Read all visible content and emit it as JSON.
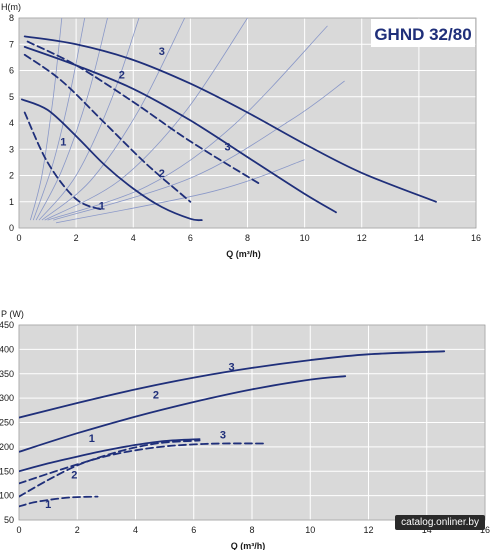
{
  "colors": {
    "plot_bg": "#d9d9d9",
    "grid": "#ffffff",
    "curve": "#1f2f7a",
    "system_curve": "#8a98c8"
  },
  "watermark": "catalog.onliner.by",
  "chart_data": [
    {
      "type": "line",
      "title": "GHND 32/80",
      "ylabel": "H(m)",
      "xlabel_main": "Q",
      "xlabel_unit": "(m³/h)",
      "xlim": [
        0,
        16
      ],
      "ylim": [
        0,
        8
      ],
      "xticks": [
        "0",
        "2",
        "4",
        "6",
        "8",
        "10",
        "12",
        "14",
        "16"
      ],
      "yticks": [
        "0",
        "1",
        "2",
        "3",
        "4",
        "5",
        "6",
        "7",
        "8"
      ],
      "grid": true,
      "series": [
        {
          "label": "3",
          "style": "solid",
          "x": [
            0.2,
            2,
            4,
            6,
            8,
            10,
            12,
            14.6
          ],
          "y": [
            7.3,
            7.0,
            6.4,
            5.5,
            4.4,
            3.2,
            2.1,
            1.0
          ]
        },
        {
          "label": "3",
          "style": "solid",
          "x": [
            0.2,
            2,
            4,
            6,
            8,
            10,
            11.1
          ],
          "y": [
            6.9,
            6.2,
            5.3,
            4.1,
            2.7,
            1.3,
            0.6
          ]
        },
        {
          "label": "3",
          "style": "dashed",
          "x": [
            0.3,
            2,
            4,
            6,
            8.4
          ],
          "y": [
            7.1,
            6.2,
            4.8,
            3.3,
            1.7
          ]
        },
        {
          "label": "2",
          "style": "dashed",
          "x": [
            0.2,
            1.5,
            3,
            4.5,
            6.0
          ],
          "y": [
            6.6,
            5.6,
            4.0,
            2.4,
            1.0
          ]
        },
        {
          "label": "1",
          "style": "solid",
          "x": [
            0.1,
            1,
            2,
            3,
            4,
            5,
            6,
            6.4
          ],
          "y": [
            4.9,
            4.5,
            3.5,
            2.4,
            1.5,
            0.8,
            0.35,
            0.3
          ]
        },
        {
          "label": "1",
          "style": "dashed",
          "x": [
            0.2,
            1,
            2,
            2.9
          ],
          "y": [
            4.4,
            2.5,
            1.1,
            0.7
          ]
        }
      ],
      "system_curves": [
        {
          "x": [
            0.4,
            0.8,
            1.2,
            1.5
          ],
          "y": [
            0.3,
            2.0,
            5.0,
            8.0
          ]
        },
        {
          "x": [
            0.5,
            1.2,
            1.8,
            2.3
          ],
          "y": [
            0.3,
            2.5,
            5.2,
            8.0
          ]
        },
        {
          "x": [
            0.6,
            1.5,
            2.4,
            3.1
          ],
          "y": [
            0.3,
            2.2,
            5.0,
            8.0
          ]
        },
        {
          "x": [
            0.7,
            2.0,
            3.2,
            4.2
          ],
          "y": [
            0.3,
            2.0,
            4.8,
            8.0
          ]
        },
        {
          "x": [
            0.8,
            2.5,
            4.2,
            5.8
          ],
          "y": [
            0.3,
            1.8,
            4.5,
            8.0
          ]
        },
        {
          "x": [
            0.9,
            3.5,
            5.8,
            8.0
          ],
          "y": [
            0.3,
            1.8,
            4.4,
            8.0
          ]
        },
        {
          "x": [
            1.0,
            4.5,
            7.5,
            10.8
          ],
          "y": [
            0.3,
            1.6,
            3.9,
            7.7
          ]
        },
        {
          "x": [
            1.2,
            6.0,
            9.5,
            11.4
          ],
          "y": [
            0.3,
            1.9,
            4.1,
            5.6
          ]
        },
        {
          "x": [
            1.3,
            6.8,
            10.0
          ],
          "y": [
            0.2,
            1.4,
            2.6
          ]
        }
      ],
      "annotations": [
        {
          "text": "3",
          "x": 5.0,
          "y": 6.75
        },
        {
          "text": "2",
          "x": 3.6,
          "y": 5.85
        },
        {
          "text": "1",
          "x": 1.55,
          "y": 3.3
        },
        {
          "text": "3",
          "x": 7.3,
          "y": 3.1
        },
        {
          "text": "2",
          "x": 5.0,
          "y": 2.1
        },
        {
          "text": "1",
          "x": 2.9,
          "y": 0.85
        }
      ]
    },
    {
      "type": "line",
      "title": "",
      "ylabel": "P (W)",
      "xlabel_main": "Q",
      "xlabel_unit": "(m³/h)",
      "xlim": [
        0,
        16
      ],
      "ylim": [
        50,
        450
      ],
      "xticks": [
        "0",
        "2",
        "4",
        "6",
        "8",
        "10",
        "12",
        "14",
        "16"
      ],
      "yticks": [
        "50",
        "100",
        "150",
        "200",
        "250",
        "300",
        "350",
        "400",
        "450"
      ],
      "grid": true,
      "series": [
        {
          "label": "3",
          "style": "solid",
          "x": [
            0,
            2,
            4,
            6,
            8,
            10,
            12,
            14.6
          ],
          "y": [
            260,
            290,
            318,
            342,
            362,
            378,
            390,
            396
          ]
        },
        {
          "label": "2",
          "style": "solid",
          "x": [
            0,
            2,
            4,
            6,
            8,
            10,
            11.2
          ],
          "y": [
            190,
            228,
            262,
            292,
            318,
            338,
            345
          ]
        },
        {
          "label": "1",
          "style": "solid",
          "x": [
            0,
            1,
            2,
            3,
            4,
            5,
            6.2
          ],
          "y": [
            150,
            166,
            180,
            193,
            204,
            212,
            216
          ]
        },
        {
          "label": "3",
          "style": "dashed",
          "x": [
            0,
            1,
            2,
            3,
            4,
            5,
            6,
            7,
            8.4
          ],
          "y": [
            125,
            145,
            164,
            181,
            193,
            201,
            205,
            207,
            207
          ]
        },
        {
          "label": "2",
          "style": "dashed",
          "x": [
            0,
            1,
            2,
            3,
            4,
            5,
            6.2
          ],
          "y": [
            98,
            132,
            162,
            183,
            199,
            209,
            213
          ]
        },
        {
          "label": "1",
          "style": "dashed",
          "x": [
            0,
            0.5,
            1,
            1.5,
            2,
            2.7
          ],
          "y": [
            78,
            86,
            91,
            95,
            97,
            98
          ]
        }
      ],
      "system_curves": [],
      "annotations": [
        {
          "text": "3",
          "x": 7.3,
          "y": 365
        },
        {
          "text": "2",
          "x": 4.7,
          "y": 307
        },
        {
          "text": "1",
          "x": 2.5,
          "y": 218
        },
        {
          "text": "3",
          "x": 7.0,
          "y": 225
        },
        {
          "text": "2",
          "x": 1.9,
          "y": 143
        },
        {
          "text": "1",
          "x": 1.0,
          "y": 83
        }
      ]
    }
  ]
}
